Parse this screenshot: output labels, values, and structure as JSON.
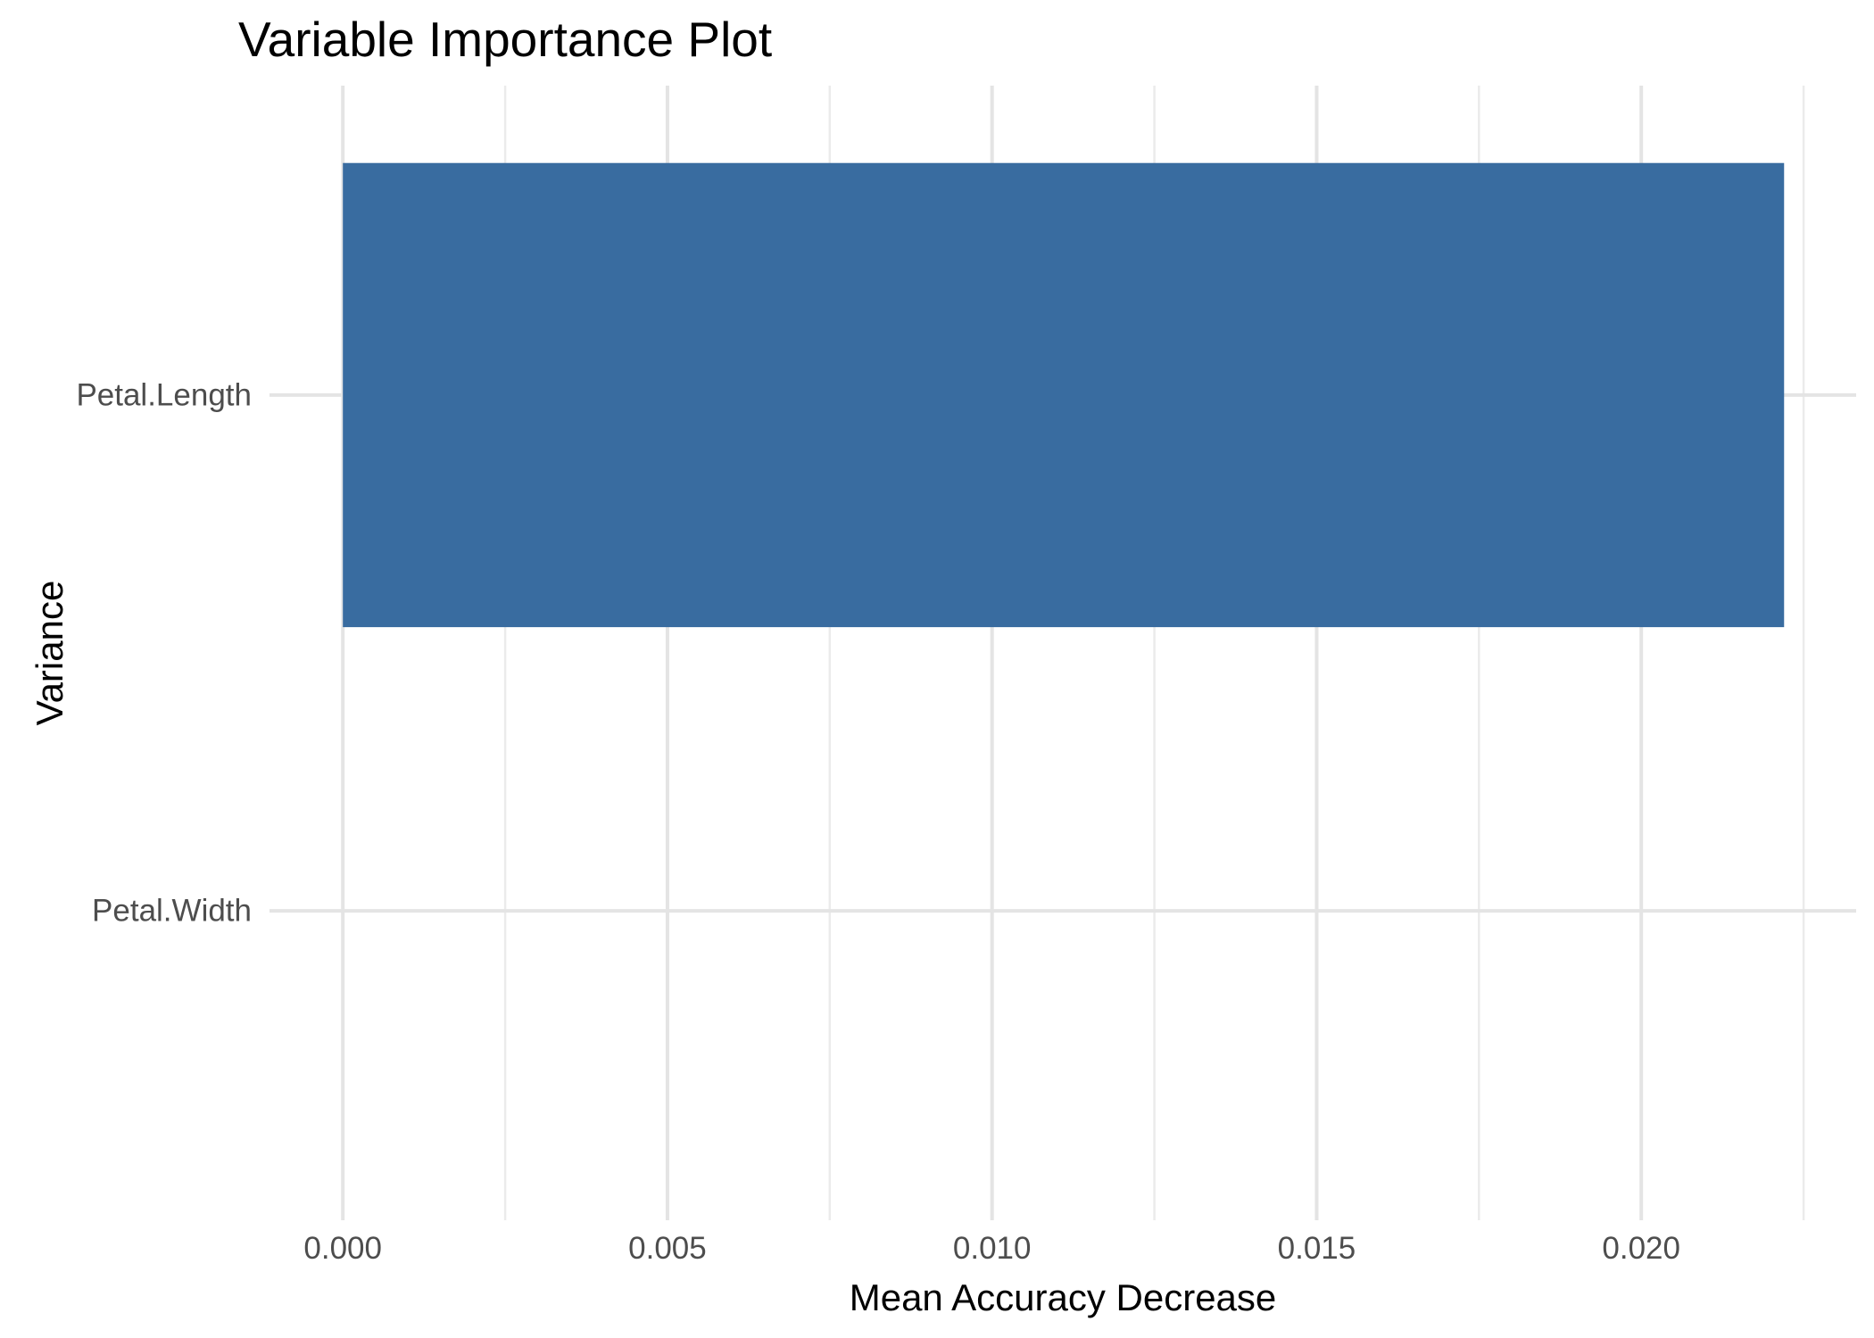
{
  "chart_data": {
    "type": "bar",
    "orientation": "horizontal",
    "title": "Variable Importance Plot",
    "xlabel": "Mean Accuracy Decrease",
    "ylabel": "Variance",
    "categories": [
      "Petal.Length",
      "Petal.Width"
    ],
    "values": [
      0.0222,
      0.0
    ],
    "x_tick_values": [
      0.0,
      0.005,
      0.01,
      0.015,
      0.02
    ],
    "x_tick_labels": [
      "0.000",
      "0.005",
      "0.010",
      "0.015",
      "0.020"
    ],
    "x_minor_tick_values": [
      0.0025,
      0.0075,
      0.0125,
      0.0175,
      0.0225
    ],
    "xlim": [
      -0.00113,
      0.02331
    ],
    "grid": "major-and-minor",
    "legend": false,
    "colors": {
      "bar": "#396CA0",
      "grid_major": "#E4E4E4",
      "grid_minor": "#EBEBEB",
      "tick_text": "#4D4D4D",
      "title_text": "#000000",
      "background": "#FFFFFF"
    }
  }
}
